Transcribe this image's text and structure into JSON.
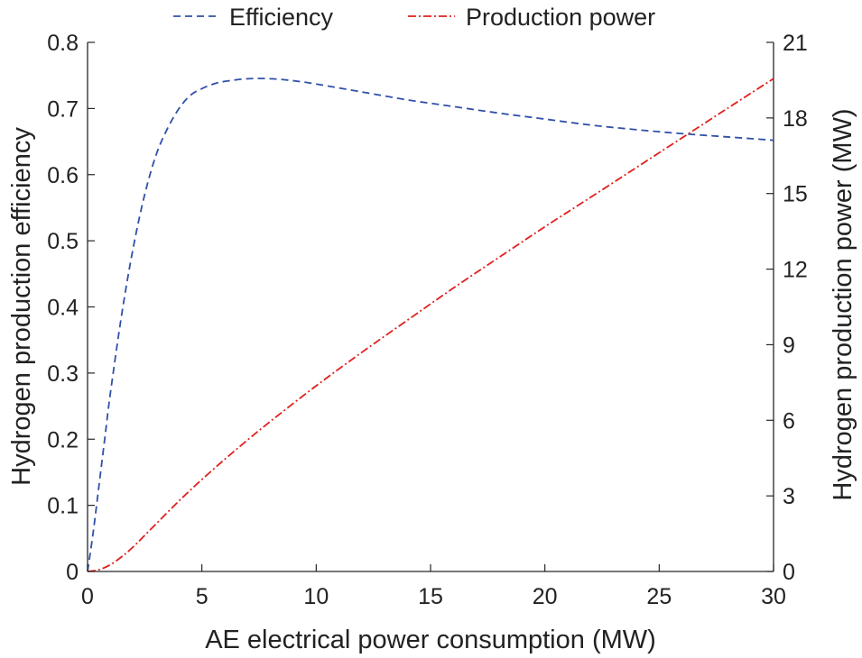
{
  "chart_data": {
    "type": "line",
    "title": "",
    "xlabel": "AE electrical power consumption (MW)",
    "ylabel_left": "Hydrogen production efficiency",
    "ylabel_right": "Hydrogen production power (MW)",
    "xlim": [
      0,
      30
    ],
    "ylim_left": [
      0,
      0.8
    ],
    "ylim_right": [
      0,
      21
    ],
    "x_ticks": [
      "0",
      "5",
      "10",
      "15",
      "20",
      "25",
      "30"
    ],
    "y_left_ticks": [
      "0",
      "0.1",
      "0.2",
      "0.3",
      "0.4",
      "0.5",
      "0.6",
      "0.7",
      "0.8"
    ],
    "y_right_ticks": [
      "0",
      "3",
      "6",
      "9",
      "12",
      "15",
      "18",
      "21"
    ],
    "grid": false,
    "legend_position": "top-center",
    "series": [
      {
        "name": "Efficiency",
        "axis": "left",
        "color": "#3050a8",
        "style": "dashed",
        "x": [
          0,
          0.25,
          0.5,
          0.75,
          1,
          1.5,
          2,
          2.5,
          3,
          3.5,
          4,
          4.5,
          5,
          5.5,
          6,
          7,
          8,
          9,
          10,
          12,
          14,
          16,
          18,
          20,
          22,
          24,
          26,
          28,
          30
        ],
        "y": [
          0,
          0.06,
          0.13,
          0.2,
          0.27,
          0.39,
          0.49,
          0.57,
          0.63,
          0.67,
          0.7,
          0.72,
          0.73,
          0.737,
          0.741,
          0.745,
          0.745,
          0.742,
          0.737,
          0.725,
          0.713,
          0.703,
          0.693,
          0.684,
          0.675,
          0.668,
          0.662,
          0.657,
          0.652
        ]
      },
      {
        "name": "Production power",
        "axis": "right",
        "color": "#e0201e",
        "style": "dashdot",
        "x": [
          0,
          0.5,
          1,
          1.5,
          2,
          3,
          4,
          5,
          6,
          7,
          8,
          10,
          12,
          14,
          16,
          18,
          20,
          22,
          24,
          26,
          28,
          30
        ],
        "y": [
          0,
          0.07,
          0.27,
          0.59,
          0.98,
          1.89,
          2.8,
          3.65,
          4.45,
          5.22,
          5.96,
          7.37,
          8.7,
          9.98,
          11.25,
          12.47,
          13.68,
          14.85,
          16.03,
          17.21,
          18.39,
          19.56
        ]
      }
    ]
  }
}
